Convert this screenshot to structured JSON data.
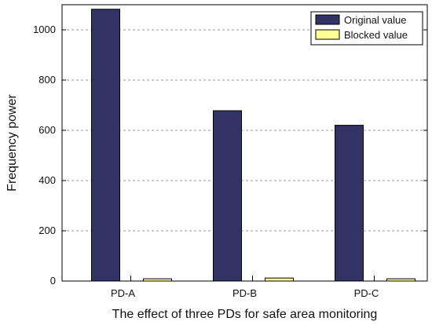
{
  "chart_data": {
    "type": "bar",
    "title": "",
    "xlabel": "The effect of three PDs for safe area monitoring",
    "ylabel": "Frequency power",
    "categories": [
      "PD-A",
      "PD-B",
      "PD-C"
    ],
    "series": [
      {
        "name": "Original value",
        "values": [
          1082,
          678,
          620
        ],
        "color": "#323264"
      },
      {
        "name": "Blocked value",
        "values": [
          9,
          12,
          9
        ],
        "color": "#ffff96"
      }
    ],
    "ylim": [
      0,
      1100
    ],
    "yticks": [
      0,
      200,
      400,
      600,
      800,
      1000
    ],
    "grid": true,
    "legend": "top-right"
  }
}
